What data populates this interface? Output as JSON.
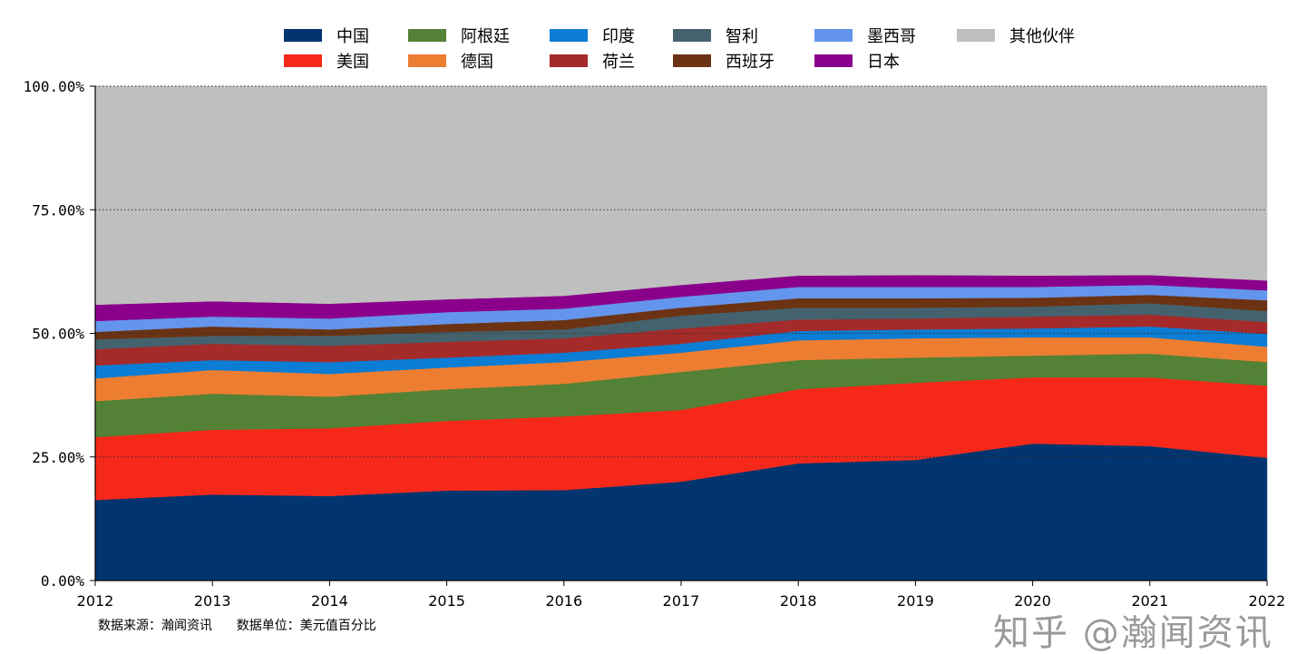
{
  "chart_data": {
    "type": "area",
    "stacked": true,
    "normalized": true,
    "x": [
      2012,
      2013,
      2014,
      2015,
      2016,
      2017,
      2018,
      2019,
      2020,
      2021,
      2022
    ],
    "x_tick_labels": [
      "2012",
      "2013",
      "2014",
      "2015",
      "2016",
      "2017",
      "2018",
      "2019",
      "2020",
      "2021",
      "2022"
    ],
    "y_tick_labels": [
      "0.00%",
      "25.00%",
      "50.00%",
      "75.00%",
      "100.00%"
    ],
    "y_ticks": [
      0,
      25,
      50,
      75,
      100
    ],
    "ylim": [
      0,
      100
    ],
    "grid": "horizontal dotted",
    "legend_placement": "top",
    "series": [
      {
        "name": "中国",
        "color": "#02356F",
        "values": [
          16.3,
          17.4,
          17.1,
          18.2,
          18.3,
          20.0,
          23.7,
          24.4,
          27.7,
          27.2,
          24.8
        ]
      },
      {
        "name": "美国",
        "color": "#F5281A",
        "values": [
          12.7,
          13.1,
          13.7,
          14.1,
          14.9,
          14.5,
          15.0,
          15.6,
          13.4,
          13.9,
          14.6
        ]
      },
      {
        "name": "阿根廷",
        "color": "#538135",
        "values": [
          7.3,
          7.3,
          6.4,
          6.4,
          6.6,
          7.7,
          5.9,
          5.1,
          4.4,
          4.8,
          4.8
        ]
      },
      {
        "name": "德国",
        "color": "#ED7D31",
        "values": [
          4.6,
          4.8,
          4.6,
          4.4,
          4.4,
          3.9,
          4.0,
          3.9,
          3.7,
          3.3,
          3.1
        ]
      },
      {
        "name": "印度",
        "color": "#0B7DD4",
        "values": [
          2.6,
          2.0,
          2.4,
          2.0,
          1.9,
          1.8,
          1.9,
          1.8,
          1.8,
          2.2,
          2.6
        ]
      },
      {
        "name": "荷兰",
        "color": "#A52A2A",
        "values": [
          3.3,
          3.3,
          3.3,
          3.2,
          2.9,
          3.1,
          2.3,
          2.2,
          2.4,
          2.4,
          2.4
        ]
      },
      {
        "name": "智利",
        "color": "#44626E",
        "values": [
          2.0,
          1.6,
          2.0,
          2.0,
          1.8,
          2.6,
          2.4,
          2.2,
          2.0,
          2.3,
          2.2
        ]
      },
      {
        "name": "西班牙",
        "color": "#6B3313",
        "values": [
          1.5,
          1.9,
          1.3,
          1.6,
          1.9,
          1.6,
          1.9,
          1.9,
          1.8,
          1.7,
          2.2
        ]
      },
      {
        "name": "墨西哥",
        "color": "#6495ED",
        "values": [
          2.2,
          2.0,
          2.2,
          2.4,
          2.3,
          2.2,
          2.3,
          2.3,
          2.2,
          2.0,
          2.0
        ]
      },
      {
        "name": "日本",
        "color": "#8B008B",
        "values": [
          3.3,
          3.1,
          3.0,
          2.6,
          2.6,
          2.4,
          2.3,
          2.4,
          2.3,
          2.0,
          2.0
        ]
      },
      {
        "name": "其他伙伴",
        "color": "#BFBFBF",
        "values": [
          44.2,
          43.5,
          44.0,
          43.1,
          42.4,
          40.2,
          38.3,
          38.2,
          38.3,
          38.2,
          39.3
        ]
      }
    ],
    "legend_order": [
      "中国",
      "阿根廷",
      "印度",
      "智利",
      "墨西哥",
      "其他伙伴",
      "美国",
      "德国",
      "荷兰",
      "西班牙",
      "日本"
    ]
  },
  "footer": {
    "source": "数据来源：瀚闻资讯",
    "unit": "数据单位：美元值百分比"
  },
  "watermark": "知乎 @瀚闻资讯"
}
